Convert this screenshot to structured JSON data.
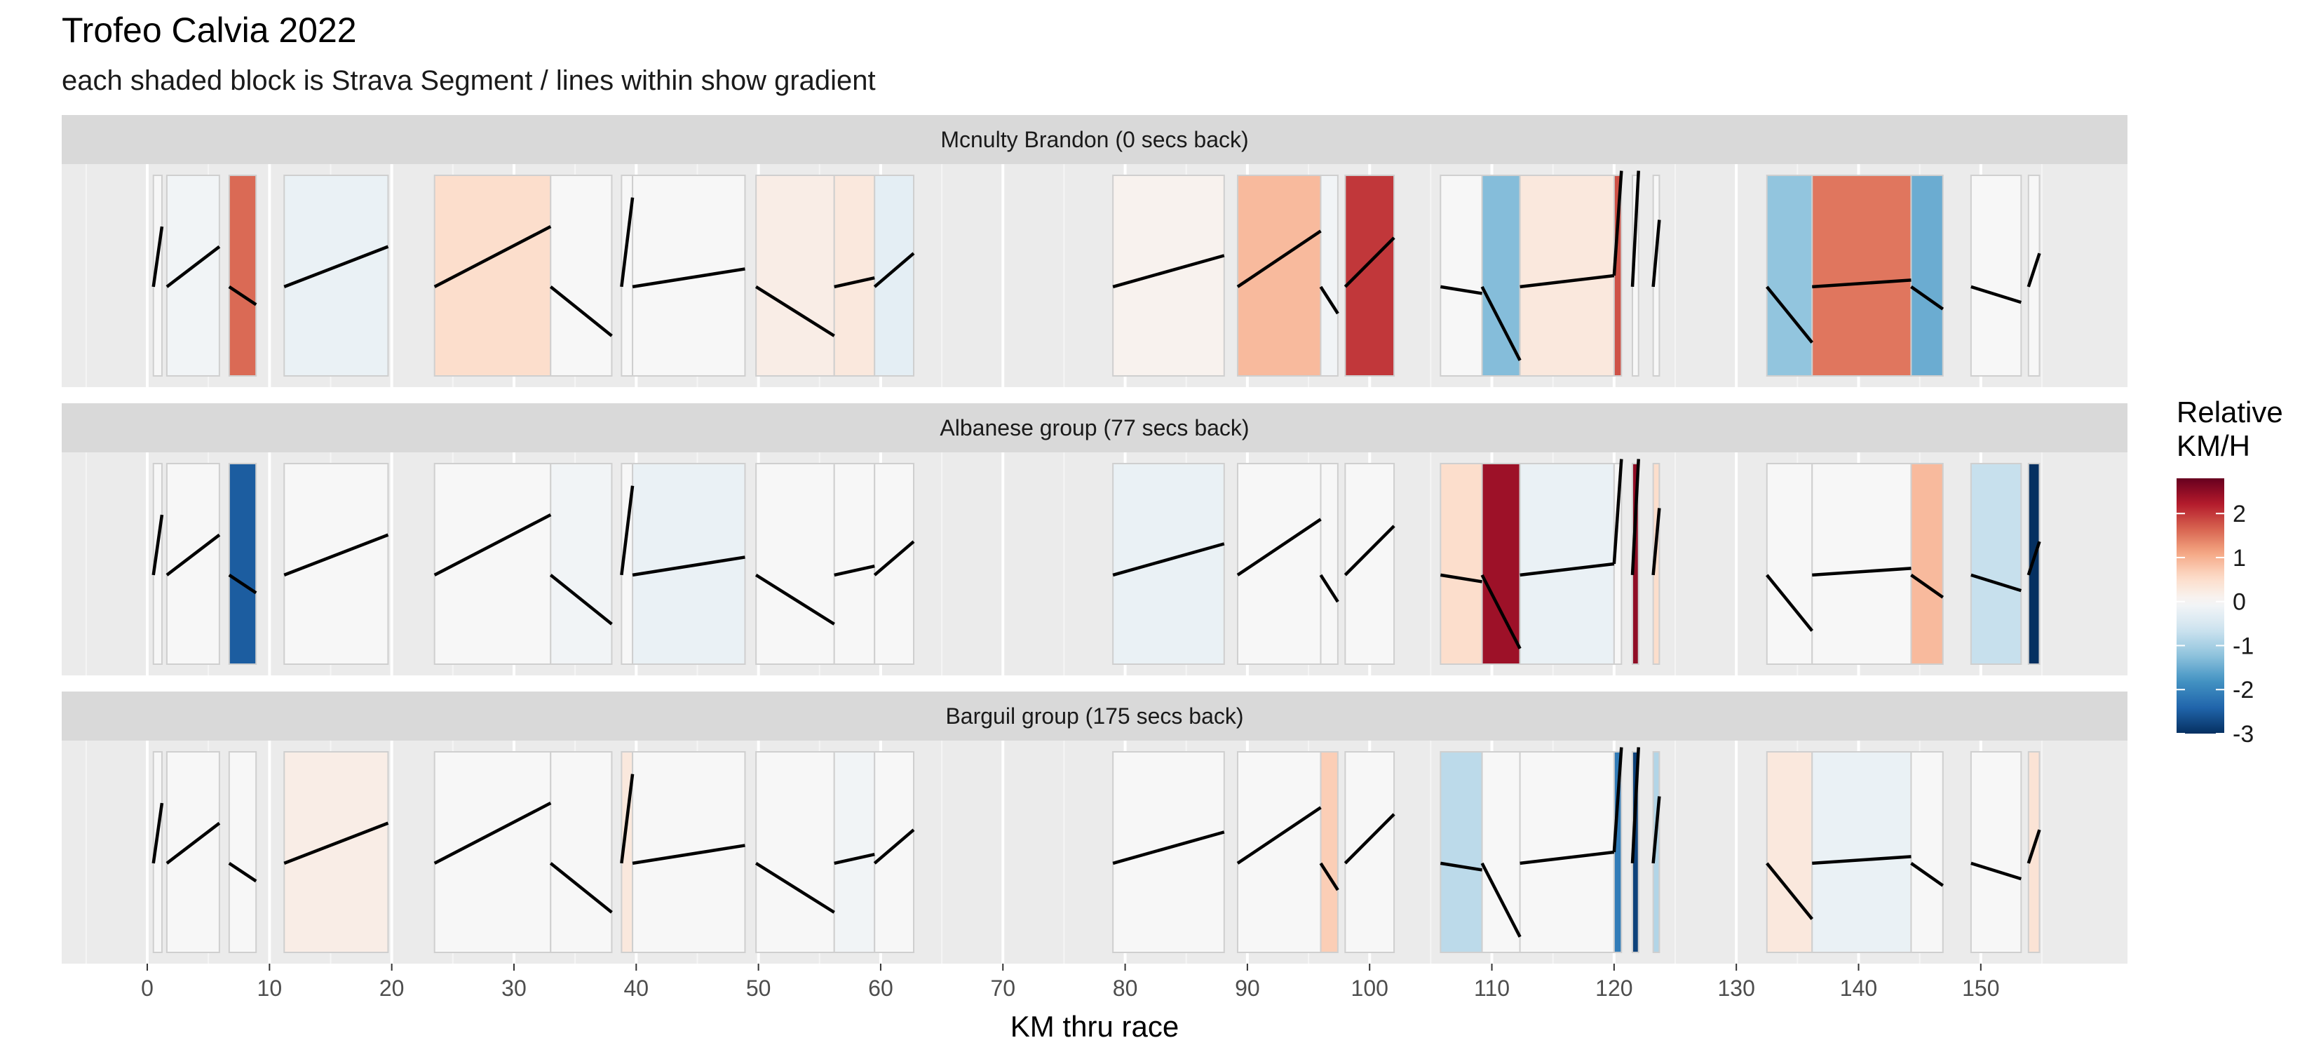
{
  "chart_data": {
    "type": "faceted-segment-chart",
    "title": "Trofeo Calvia 2022",
    "subtitle": "each shaded block is Strava Segment / lines within show gradient",
    "xlabel": "KM thru race",
    "xlim": [
      -7,
      162
    ],
    "x_ticks": [
      0,
      10,
      20,
      30,
      40,
      50,
      60,
      70,
      80,
      90,
      100,
      110,
      120,
      130,
      140,
      150
    ],
    "legend": {
      "title_lines": [
        "Relative",
        "KM/H"
      ],
      "range": [
        -3,
        2.8
      ],
      "ticks": [
        2,
        1,
        0,
        -1,
        -2,
        -3
      ],
      "placement": "right",
      "colors": [
        "#053061",
        "#2166ac",
        "#4393c3",
        "#92c5de",
        "#d1e5f0",
        "#f7f7f7",
        "#fddbc7",
        "#f4a582",
        "#d6604d",
        "#b2182b",
        "#67001f"
      ]
    },
    "segments": [
      {
        "start": 0.5,
        "end": 1.2,
        "gradient": [
          0.45,
          0.72
        ]
      },
      {
        "start": 1.6,
        "end": 5.9,
        "gradient": [
          0.45,
          0.63
        ]
      },
      {
        "start": 6.7,
        "end": 8.9,
        "gradient": [
          0.45,
          0.37
        ]
      },
      {
        "start": 11.2,
        "end": 19.7,
        "gradient": [
          0.45,
          0.63
        ]
      },
      {
        "start": 23.5,
        "end": 33.0,
        "gradient": [
          0.45,
          0.72
        ]
      },
      {
        "start": 33.0,
        "end": 38.0,
        "gradient": [
          0.45,
          0.23
        ]
      },
      {
        "start": 38.8,
        "end": 39.7,
        "gradient": [
          0.45,
          0.85
        ]
      },
      {
        "start": 39.7,
        "end": 48.9,
        "gradient": [
          0.45,
          0.53
        ]
      },
      {
        "start": 49.8,
        "end": 56.2,
        "gradient": [
          0.45,
          0.23
        ]
      },
      {
        "start": 56.2,
        "end": 59.5,
        "gradient": [
          0.45,
          0.49
        ]
      },
      {
        "start": 59.5,
        "end": 62.7,
        "gradient": [
          0.45,
          0.6
        ]
      },
      {
        "start": 79.0,
        "end": 88.1,
        "gradient": [
          0.45,
          0.59
        ]
      },
      {
        "start": 89.2,
        "end": 96.0,
        "gradient": [
          0.45,
          0.7
        ]
      },
      {
        "start": 96.0,
        "end": 97.4,
        "gradient": [
          0.45,
          0.33
        ]
      },
      {
        "start": 98.0,
        "end": 102.0,
        "gradient": [
          0.45,
          0.67
        ]
      },
      {
        "start": 105.8,
        "end": 109.2,
        "gradient": [
          0.45,
          0.42
        ]
      },
      {
        "start": 109.2,
        "end": 112.3,
        "gradient": [
          0.45,
          0.12
        ]
      },
      {
        "start": 112.3,
        "end": 120.0,
        "gradient": [
          0.45,
          0.5
        ]
      },
      {
        "start": 120.0,
        "end": 120.6,
        "gradient": [
          0.5,
          0.97
        ]
      },
      {
        "start": 121.5,
        "end": 122.0,
        "gradient": [
          0.45,
          0.97
        ]
      },
      {
        "start": 123.2,
        "end": 123.7,
        "gradient": [
          0.45,
          0.75
        ]
      },
      {
        "start": 132.5,
        "end": 136.2,
        "gradient": [
          0.45,
          0.2
        ]
      },
      {
        "start": 136.2,
        "end": 144.3,
        "gradient": [
          0.45,
          0.48
        ]
      },
      {
        "start": 144.3,
        "end": 146.9,
        "gradient": [
          0.45,
          0.35
        ]
      },
      {
        "start": 149.2,
        "end": 153.3,
        "gradient": [
          0.45,
          0.38
        ]
      },
      {
        "start": 153.9,
        "end": 154.8,
        "gradient": [
          0.45,
          0.6
        ]
      }
    ],
    "panels": [
      {
        "label": "Mcnulty Brandon (0 secs back)",
        "relative_kmh": [
          0.0,
          -0.1,
          1.6,
          -0.2,
          0.5,
          0.0,
          0.0,
          0.0,
          0.2,
          0.3,
          -0.3,
          0.1,
          0.9,
          -0.1,
          2.0,
          0.0,
          -1.3,
          0.3,
          1.8,
          0.0,
          0.0,
          -1.2,
          1.5,
          -1.5,
          0.0,
          0.0
        ]
      },
      {
        "label": "Albanese group (77 secs back)",
        "relative_kmh": [
          0.0,
          0.0,
          -2.5,
          0.0,
          0.0,
          -0.1,
          0.0,
          -0.2,
          0.0,
          0.0,
          0.0,
          -0.2,
          0.0,
          0.0,
          0.0,
          0.5,
          2.4,
          -0.2,
          0.0,
          2.5,
          0.5,
          0.0,
          0.0,
          0.9,
          -0.7,
          -3.0
        ]
      },
      {
        "label": "Barguil group (175 secs back)",
        "relative_kmh": [
          0.0,
          0.0,
          0.0,
          0.2,
          0.0,
          0.0,
          0.3,
          0.0,
          0.0,
          -0.1,
          0.0,
          0.0,
          0.0,
          0.7,
          0.0,
          -0.8,
          0.0,
          0.0,
          -2.1,
          -2.8,
          -0.9,
          0.3,
          -0.2,
          0.0,
          0.0,
          0.4
        ]
      }
    ]
  }
}
